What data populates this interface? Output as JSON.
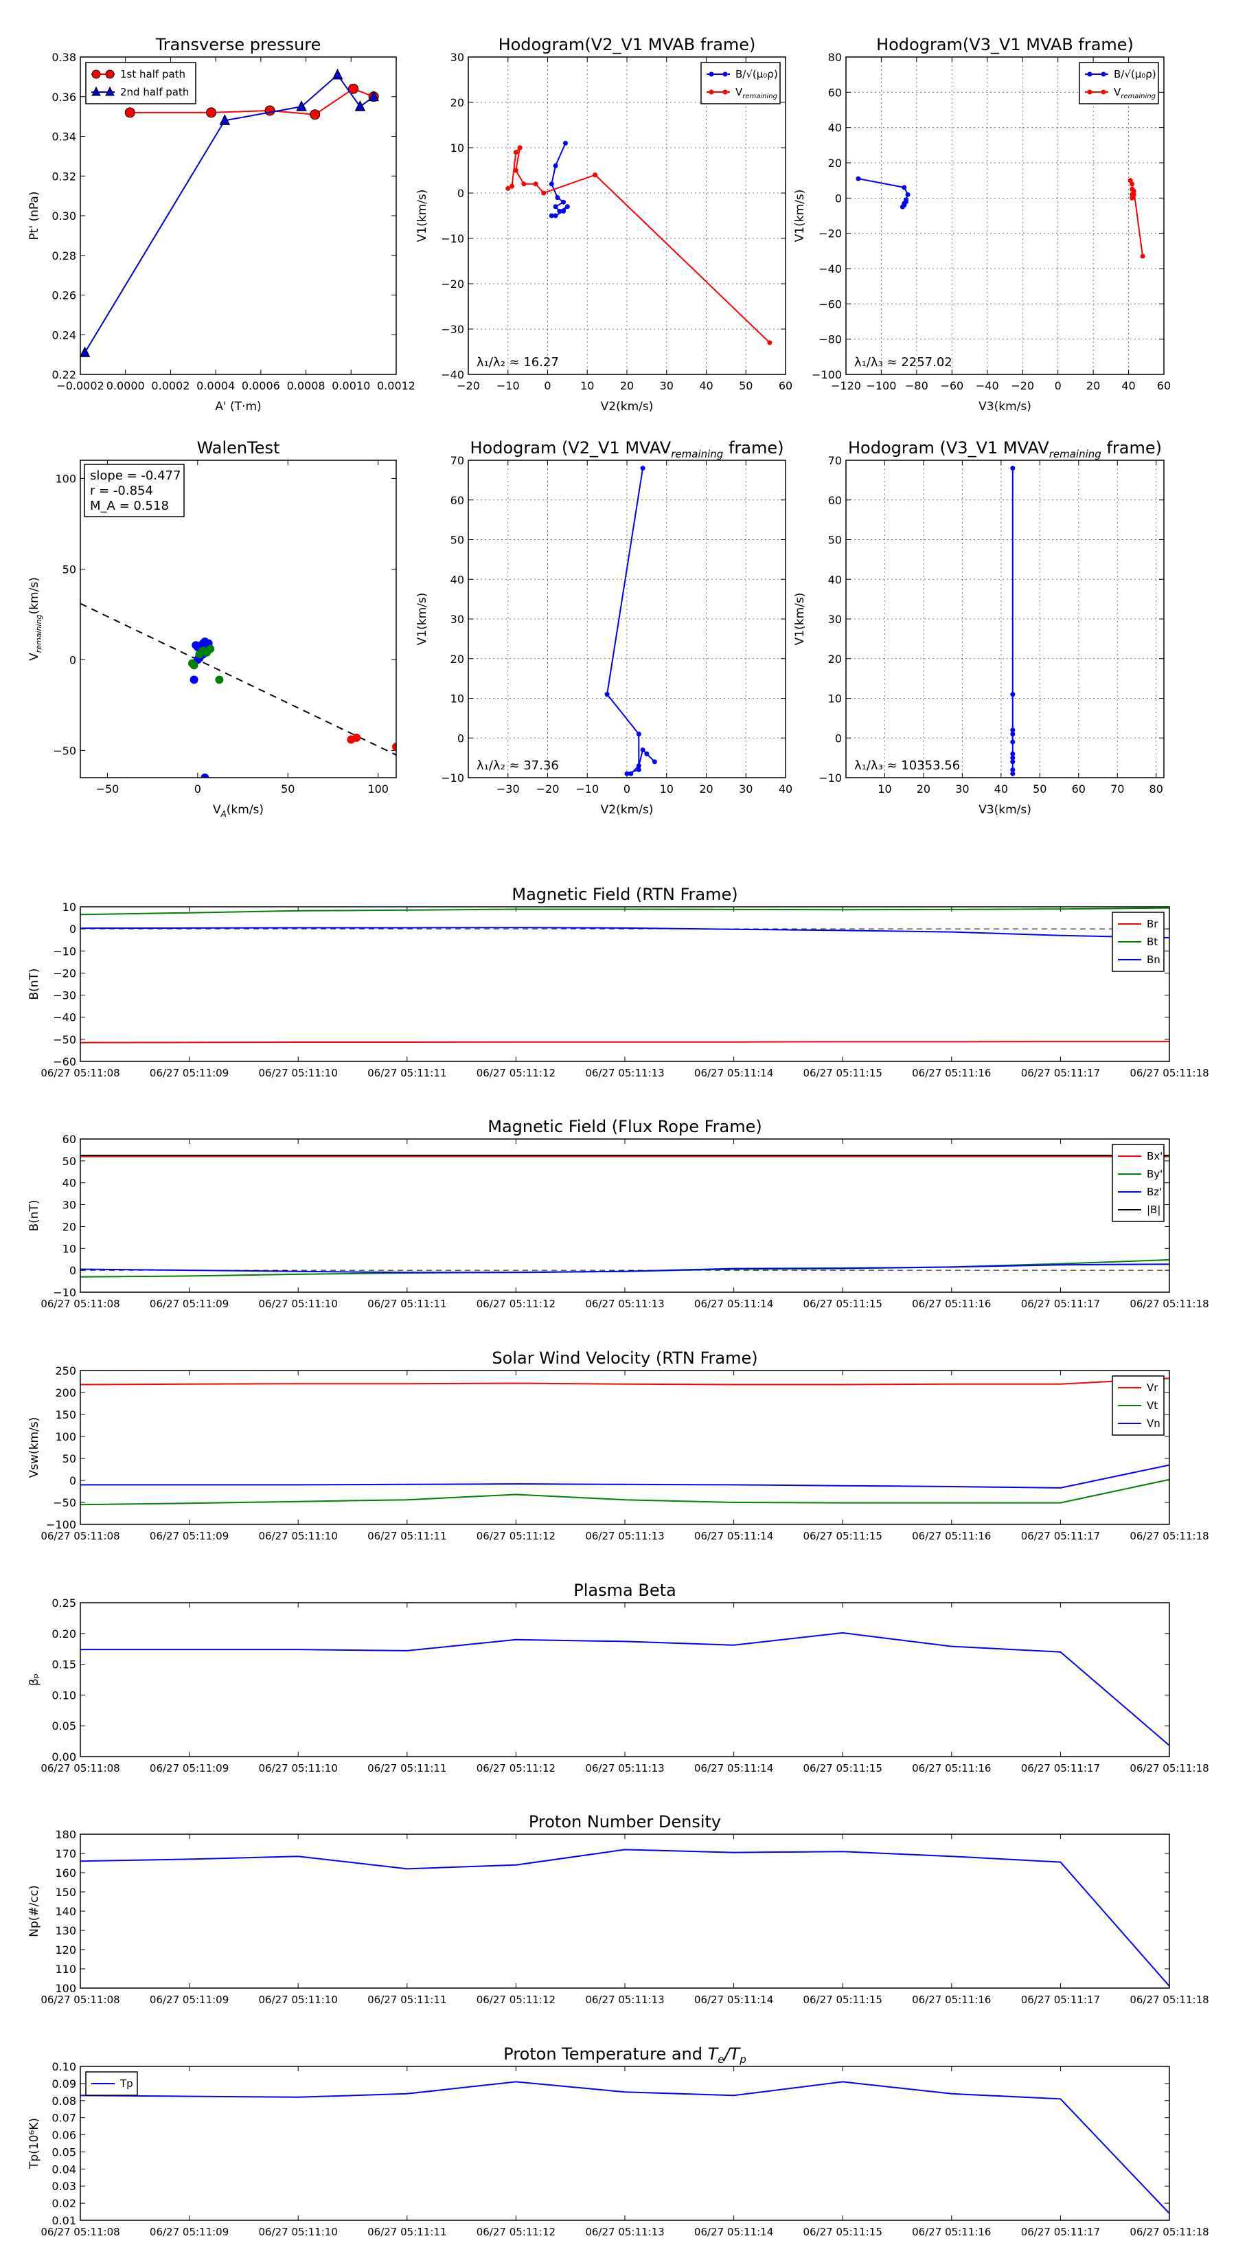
{
  "chart_data": [
    {
      "id": "transverse-pressure",
      "type": "line",
      "title": "Transverse pressure",
      "xlabel": "A' (T·m)",
      "ylabel": "Pt' (nPa)",
      "xlim": [
        -0.0002,
        0.0012
      ],
      "ylim": [
        0.22,
        0.38
      ],
      "xticks": [
        -0.0002,
        0.0,
        0.0002,
        0.0004,
        0.0006,
        0.0008,
        0.001,
        0.0012
      ],
      "xtick_labels": [
        "−0.0002",
        "0.0000",
        "0.0002",
        "0.0004",
        "0.0006",
        "0.0008",
        "0.0010",
        "0.0012"
      ],
      "yticks": [
        0.22,
        0.24,
        0.26,
        0.28,
        0.3,
        0.32,
        0.34,
        0.36,
        0.38
      ],
      "ytick_labels": [
        "0.22",
        "0.24",
        "0.26",
        "0.28",
        "0.30",
        "0.32",
        "0.34",
        "0.36",
        "0.38"
      ],
      "grid": false,
      "legend_position": "top-left",
      "series": [
        {
          "name": "1st half path",
          "color": "#ff0000",
          "marker": "circle",
          "x": [
            2e-05,
            0.00038,
            0.00064,
            0.00084,
            0.00101,
            0.0011
          ],
          "y": [
            0.352,
            0.352,
            0.353,
            0.351,
            0.364,
            0.36
          ]
        },
        {
          "name": "2nd half path",
          "color": "#0000cc",
          "marker": "triangle",
          "x": [
            -0.00018,
            0.00044,
            0.00078,
            0.00094,
            0.00104,
            0.0011
          ],
          "y": [
            0.231,
            0.348,
            0.355,
            0.371,
            0.355,
            0.36
          ]
        }
      ]
    },
    {
      "id": "hodogram-v2v1-mvab",
      "type": "line",
      "title": "Hodogram(V2_V1 MVAB frame)",
      "xlabel": "V2(km/s)",
      "ylabel": "V1(km/s)",
      "xlim": [
        -20,
        60
      ],
      "ylim": [
        -40,
        30
      ],
      "xticks": [
        -20,
        -10,
        0,
        10,
        20,
        30,
        40,
        50,
        60
      ],
      "xtick_labels": [
        "−20",
        "−10",
        "0",
        "10",
        "20",
        "30",
        "40",
        "50",
        "60"
      ],
      "yticks": [
        -40,
        -30,
        -20,
        -10,
        0,
        10,
        20,
        30
      ],
      "ytick_labels": [
        "−40",
        "−30",
        "−20",
        "−10",
        "0",
        "10",
        "20",
        "30"
      ],
      "grid": true,
      "legend_position": "top-right",
      "annotation": "λ₁/λ₂ ≈ 16.27",
      "series": [
        {
          "name": "B/√(μ₀ρ)",
          "color": "#0000ff",
          "x": [
            4.5,
            2,
            1,
            2.5,
            4,
            2,
            3,
            5,
            4,
            2,
            1
          ],
          "y": [
            11,
            6,
            2,
            -1,
            -2,
            -3,
            -4,
            -3,
            -4,
            -5,
            -5
          ]
        },
        {
          "name": "V_remaining",
          "color": "#ff0000",
          "x": [
            -10,
            -9,
            -8,
            -7,
            -8,
            -6,
            -3,
            -1,
            12,
            56
          ],
          "y": [
            1,
            1.5,
            9,
            10,
            5,
            2,
            2,
            0,
            4,
            -33
          ]
        }
      ]
    },
    {
      "id": "hodogram-v3v1-mvab",
      "type": "line",
      "title": "Hodogram(V3_V1 MVAB frame)",
      "xlabel": "V3(km/s)",
      "ylabel": "V1(km/s)",
      "xlim": [
        -120,
        60
      ],
      "ylim": [
        -100,
        80
      ],
      "xticks": [
        -120,
        -100,
        -80,
        -60,
        -40,
        -20,
        0,
        20,
        40,
        60
      ],
      "xtick_labels": [
        "−120",
        "−100",
        "−80",
        "−60",
        "−40",
        "−20",
        "0",
        "20",
        "40",
        "60"
      ],
      "yticks": [
        -100,
        -80,
        -60,
        -40,
        -20,
        0,
        20,
        40,
        60,
        80
      ],
      "ytick_labels": [
        "−100",
        "−80",
        "−60",
        "−40",
        "−20",
        "0",
        "20",
        "40",
        "60",
        "80"
      ],
      "grid": true,
      "legend_position": "top-right",
      "annotation": "λ₁/λ₃ ≈ 2257.02",
      "series": [
        {
          "name": "B/√(μ₀ρ)",
          "color": "#0000ff",
          "x": [
            -113,
            -87,
            -85,
            -86,
            -87,
            -88,
            -87,
            -86
          ],
          "y": [
            11,
            6,
            2,
            -1,
            -3,
            -5,
            -4,
            -2
          ]
        },
        {
          "name": "V_remaining",
          "color": "#ff0000",
          "x": [
            41,
            42,
            42,
            43,
            42,
            42,
            43,
            48
          ],
          "y": [
            10,
            8,
            5,
            2,
            0,
            2,
            4,
            -33
          ]
        }
      ]
    },
    {
      "id": "walen-test",
      "type": "scatter",
      "title": "WalenTest",
      "xlabel": "V_A(km/s)",
      "ylabel": "V_remaining(km/s)",
      "xlim": [
        -65,
        110
      ],
      "ylim": [
        -65,
        110
      ],
      "xticks": [
        -50,
        0,
        50,
        100
      ],
      "xtick_labels": [
        "−50",
        "0",
        "50",
        "100"
      ],
      "yticks": [
        -50,
        0,
        50,
        100
      ],
      "ytick_labels": [
        "−50",
        "0",
        "50",
        "100"
      ],
      "grid": false,
      "annotations": [
        "slope = -0.477",
        "r = -0.854",
        "M_A = 0.518"
      ],
      "fit_line": {
        "slope": -0.477,
        "intercept": 0
      },
      "series": [
        {
          "name": "blue",
          "color": "#0000ff",
          "x": [
            -2,
            0,
            1,
            2,
            3,
            4,
            5,
            2,
            0,
            1,
            3,
            4,
            5,
            6,
            4,
            3,
            2,
            1,
            -1,
            4
          ],
          "y": [
            -11,
            0,
            2,
            4,
            5,
            6,
            7,
            8,
            7,
            1,
            3,
            4,
            8,
            9,
            10,
            9,
            6,
            3,
            8,
            -65
          ]
        },
        {
          "name": "green",
          "color": "#008000",
          "x": [
            -3,
            -2,
            1,
            3,
            5,
            7,
            12
          ],
          "y": [
            -2,
            -3,
            3,
            5,
            4,
            6,
            -11
          ]
        },
        {
          "name": "red",
          "color": "#ff0000",
          "x": [
            85,
            88,
            110
          ],
          "y": [
            -44,
            -43,
            -48
          ]
        }
      ]
    },
    {
      "id": "hodogram-v2v1-mvav",
      "type": "line",
      "title": "Hodogram (V2_V1 MVAV_remaining frame)",
      "xlabel": "V2(km/s)",
      "ylabel": "V1(km/s)",
      "xlim": [
        -40,
        40
      ],
      "ylim": [
        -10,
        70
      ],
      "xticks": [
        -30,
        -20,
        -10,
        0,
        10,
        20,
        30,
        40
      ],
      "xtick_labels": [
        "−30",
        "−20",
        "−10",
        "0",
        "10",
        "20",
        "30",
        "40"
      ],
      "yticks": [
        -10,
        0,
        10,
        20,
        30,
        40,
        50,
        60,
        70
      ],
      "ytick_labels": [
        "−10",
        "0",
        "10",
        "20",
        "30",
        "40",
        "50",
        "60",
        "70"
      ],
      "grid": true,
      "annotation": "λ₁/λ₂ ≈ 37.36",
      "series": [
        {
          "name": "blue",
          "color": "#0000ff",
          "x": [
            4,
            -5,
            3,
            3,
            0,
            1,
            3,
            4,
            5,
            7
          ],
          "y": [
            68,
            11,
            1,
            -8,
            -9,
            -9,
            -7,
            -3,
            -4,
            -6
          ]
        }
      ]
    },
    {
      "id": "hodogram-v3v1-mvav",
      "type": "line",
      "title": "Hodogram (V3_V1 MVAV_remaining frame)",
      "xlabel": "V3(km/s)",
      "ylabel": "V1(km/s)",
      "xlim": [
        0,
        82
      ],
      "ylim": [
        -10,
        70
      ],
      "xticks": [
        10,
        20,
        30,
        40,
        50,
        60,
        70,
        80
      ],
      "xtick_labels": [
        "10",
        "20",
        "30",
        "40",
        "50",
        "60",
        "70",
        "80"
      ],
      "yticks": [
        -10,
        0,
        10,
        20,
        30,
        40,
        50,
        60,
        70
      ],
      "ytick_labels": [
        "−10",
        "0",
        "10",
        "20",
        "30",
        "40",
        "50",
        "60",
        "70"
      ],
      "grid": true,
      "annotation": "λ₁/λ₃ ≈ 10353.56",
      "series": [
        {
          "name": "blue",
          "color": "#0000ff",
          "x": [
            43,
            43,
            43,
            43,
            43,
            43,
            43,
            43,
            43,
            43
          ],
          "y": [
            68,
            11,
            2,
            1,
            -1,
            -4,
            -5,
            -6,
            -8,
            -9
          ]
        }
      ]
    },
    {
      "id": "magnetic-field-rtn",
      "type": "line",
      "title": "Magnetic Field (RTN Frame)",
      "xlabel": "",
      "ylabel": "B(nT)",
      "ylim": [
        -60,
        10
      ],
      "yticks": [
        -60,
        -50,
        -40,
        -30,
        -20,
        -10,
        0,
        10
      ],
      "ytick_labels": [
        "−60",
        "−50",
        "−40",
        "−30",
        "−20",
        "−10",
        "0",
        "10"
      ],
      "legend_position": "top-right",
      "zero_line": true,
      "series": [
        {
          "name": "Br",
          "color": "#ff0000",
          "values": [
            -51.5,
            -51.4,
            -51.3,
            -51.3,
            -51.2,
            -51.2,
            -51.2,
            -51.1,
            -51.1,
            -51.0,
            -51.0
          ]
        },
        {
          "name": "Bt",
          "color": "#008000",
          "values": [
            6.5,
            7.3,
            8.2,
            8.5,
            8.9,
            8.9,
            8.8,
            8.7,
            8.8,
            9.0,
            9.5
          ]
        },
        {
          "name": "Bn",
          "color": "#0000ff",
          "values": [
            0.3,
            0.4,
            0.5,
            0.5,
            0.6,
            0.4,
            -0.2,
            -0.7,
            -1.4,
            -3.0,
            -4.0
          ]
        }
      ]
    },
    {
      "id": "magnetic-field-fluxrope",
      "type": "line",
      "title": "Magnetic Field (Flux Rope Frame)",
      "xlabel": "",
      "ylabel": "B(nT)",
      "ylim": [
        -10,
        60
      ],
      "yticks": [
        -10,
        0,
        10,
        20,
        30,
        40,
        50,
        60
      ],
      "ytick_labels": [
        "−10",
        "0",
        "10",
        "20",
        "30",
        "40",
        "50",
        "60"
      ],
      "legend_position": "top-right",
      "zero_line": true,
      "series": [
        {
          "name": "Bx'",
          "color": "#ff0000",
          "values": [
            52.0,
            52.0,
            52.0,
            52.0,
            52.0,
            52.0,
            52.0,
            52.0,
            52.0,
            52.0,
            52.0
          ]
        },
        {
          "name": "By'",
          "color": "#008000",
          "values": [
            -3.0,
            -2.6,
            -1.8,
            -1.2,
            -0.9,
            -0.5,
            0.5,
            0.8,
            1.5,
            3.0,
            4.8
          ]
        },
        {
          "name": "Bz'",
          "color": "#0000ff",
          "values": [
            0.5,
            0.0,
            -0.5,
            -1.0,
            -1.0,
            -0.5,
            0.8,
            1.0,
            1.5,
            2.5,
            2.8
          ]
        },
        {
          "name": "|B|",
          "color": "#000000",
          "values": [
            52.5,
            52.5,
            52.5,
            52.5,
            52.5,
            52.5,
            52.5,
            52.5,
            52.5,
            52.5,
            52.5
          ]
        }
      ]
    },
    {
      "id": "solar-wind-velocity",
      "type": "line",
      "title": "Solar Wind Velocity (RTN Frame)",
      "xlabel": "",
      "ylabel": "Vsw(km/s)",
      "ylim": [
        -100,
        250
      ],
      "yticks": [
        -100,
        -50,
        0,
        50,
        100,
        150,
        200,
        250
      ],
      "ytick_labels": [
        "−100",
        "−50",
        "0",
        "50",
        "100",
        "150",
        "200",
        "250"
      ],
      "legend_position": "top-right",
      "series": [
        {
          "name": "Vr",
          "color": "#ff0000",
          "values": [
            218,
            219,
            220,
            220,
            221,
            219,
            218,
            218,
            219,
            219,
            232
          ]
        },
        {
          "name": "Vt",
          "color": "#008000",
          "values": [
            -55,
            -52,
            -48,
            -44,
            -32,
            -44,
            -50,
            -51,
            -51,
            -51,
            2
          ]
        },
        {
          "name": "Vn",
          "color": "#0000ff",
          "values": [
            -10,
            -10,
            -10,
            -9,
            -8,
            -9,
            -10,
            -12,
            -14,
            -17,
            35
          ]
        }
      ]
    },
    {
      "id": "plasma-beta",
      "type": "line",
      "title": "Plasma Beta",
      "xlabel": "",
      "ylabel": "βₚ",
      "ylim": [
        0,
        0.25
      ],
      "yticks": [
        0,
        0.05,
        0.1,
        0.15,
        0.2,
        0.25
      ],
      "ytick_labels": [
        "0.00",
        "0.05",
        "0.10",
        "0.15",
        "0.20",
        "0.25"
      ],
      "series": [
        {
          "name": "beta",
          "color": "#0000ff",
          "values": [
            0.174,
            0.174,
            0.174,
            0.172,
            0.19,
            0.187,
            0.181,
            0.201,
            0.179,
            0.17,
            0.018
          ]
        }
      ]
    },
    {
      "id": "proton-number-density",
      "type": "line",
      "title": "Proton Number Density",
      "xlabel": "",
      "ylabel": "Np(#/cc)",
      "ylim": [
        100,
        180
      ],
      "yticks": [
        100,
        110,
        120,
        130,
        140,
        150,
        160,
        170,
        180
      ],
      "ytick_labels": [
        "100",
        "110",
        "120",
        "130",
        "140",
        "150",
        "160",
        "170",
        "180"
      ],
      "series": [
        {
          "name": "Np",
          "color": "#0000ff",
          "values": [
            166,
            167,
            168.5,
            162,
            164,
            172,
            170.5,
            171,
            168.5,
            165.5,
            101
          ]
        }
      ]
    },
    {
      "id": "proton-temperature",
      "type": "line",
      "title": "Proton Temperature and T_e/T_p",
      "xlabel": "",
      "ylabel": "Tp(10⁶K)",
      "ylim": [
        0.01,
        0.1
      ],
      "yticks": [
        0.01,
        0.02,
        0.03,
        0.04,
        0.05,
        0.06,
        0.07,
        0.08,
        0.09,
        0.1
      ],
      "ytick_labels": [
        "0.01",
        "0.02",
        "0.03",
        "0.04",
        "0.05",
        "0.06",
        "0.07",
        "0.08",
        "0.09",
        "0.10"
      ],
      "legend_position": "top-left",
      "series": [
        {
          "name": "Tp",
          "color": "#0000ff",
          "values": [
            0.083,
            0.0825,
            0.082,
            0.084,
            0.091,
            0.085,
            0.083,
            0.091,
            0.084,
            0.081,
            0.014
          ]
        }
      ]
    }
  ],
  "time_axis": {
    "labels": [
      "06/27 05:11:08",
      "06/27 05:11:09",
      "06/27 05:11:10",
      "06/27 05:11:11",
      "06/27 05:11:12",
      "06/27 05:11:13",
      "06/27 05:11:14",
      "06/27 05:11:15",
      "06/27 05:11:16",
      "06/27 05:11:17",
      "06/27 05:11:18"
    ]
  }
}
